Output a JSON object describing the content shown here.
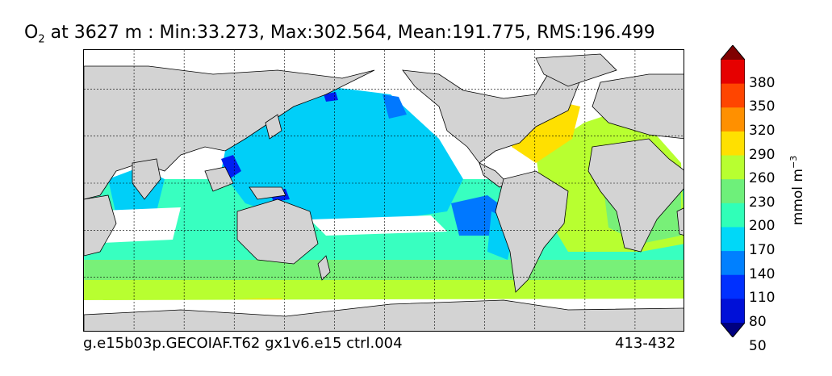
{
  "title": {
    "var": "O",
    "var_sub": "2",
    "rest": " at 3627 m : Min:33.273, Max:302.564, Mean:191.775, RMS:196.499"
  },
  "footer": {
    "left": "g.e15b03p.GECOIAF.T62 gx1v6.e15 ctrl.004",
    "right": "413-432"
  },
  "colorbar": {
    "units_main": "mmol m",
    "units_exp": "−3",
    "labels": [
      "380",
      "350",
      "320",
      "290",
      "260",
      "230",
      "200",
      "170",
      "140",
      "110",
      "80",
      "50"
    ],
    "colors_top_to_bottom": [
      "#800000",
      "#e60000",
      "#ff4500",
      "#ff9000",
      "#ffe000",
      "#b8ff30",
      "#6ef07a",
      "#30ffb8",
      "#00d8f8",
      "#0080ff",
      "#0030ff",
      "#0010d8",
      "#000080"
    ]
  },
  "map_colors": {
    "land": "#d3d3d3",
    "missing": "#ffffff",
    "c140": "#00cff8",
    "c170": "#38ffc0",
    "c200": "#78f078",
    "c230": "#b8ff30",
    "c260": "#ffe000",
    "c110": "#0078ff",
    "c80": "#0020f0",
    "c290": "#ff9a00"
  }
}
